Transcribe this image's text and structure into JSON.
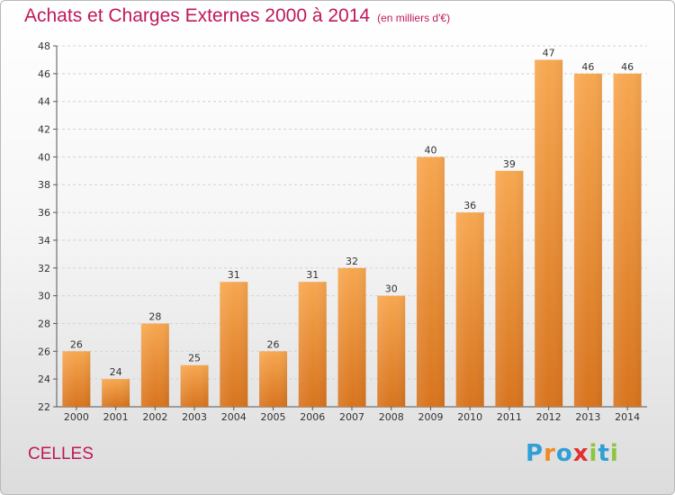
{
  "header": {
    "title": "Achats et Charges Externes 2000 à 2014",
    "unit": "(en milliers d'€)"
  },
  "commune": "CELLES",
  "logo": {
    "text": "Proxiti",
    "letters": [
      {
        "ch": "P",
        "color": "#2f9fd8"
      },
      {
        "ch": "r",
        "color": "#f08a24"
      },
      {
        "ch": "o",
        "color": "#2f9fd8"
      },
      {
        "ch": "x",
        "color": "#e03030"
      },
      {
        "ch": "i",
        "color": "#8cc63f"
      },
      {
        "ch": "t",
        "color": "#2f9fd8"
      },
      {
        "ch": "i",
        "color": "#8cc63f"
      }
    ]
  },
  "chart_data": {
    "type": "bar",
    "categories": [
      "2000",
      "2001",
      "2002",
      "2003",
      "2004",
      "2005",
      "2006",
      "2007",
      "2008",
      "2009",
      "2010",
      "2011",
      "2012",
      "2013",
      "2014"
    ],
    "values": [
      26,
      24,
      28,
      25,
      31,
      26,
      31,
      32,
      30,
      40,
      36,
      39,
      47,
      46,
      46
    ],
    "ylim": [
      22,
      48
    ],
    "yticks": [
      22,
      24,
      26,
      28,
      30,
      32,
      34,
      36,
      38,
      40,
      42,
      44,
      46,
      48
    ],
    "grid": true,
    "bar_color_top": "#f7a750",
    "bar_color_bottom": "#d8741e"
  }
}
